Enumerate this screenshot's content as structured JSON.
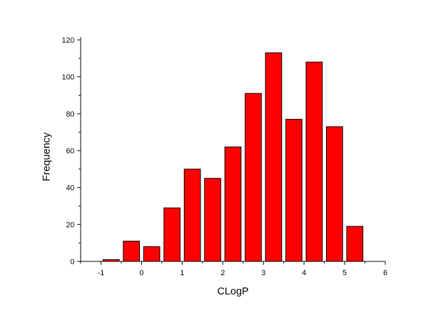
{
  "chart_data": {
    "type": "bar",
    "title": "",
    "xlabel": "CLogP",
    "ylabel": "Frequency",
    "xlim": [
      -1.5,
      6
    ],
    "ylim": [
      0,
      120
    ],
    "xticks": [
      "-1",
      "0",
      "1",
      "2",
      "3",
      "4",
      "5",
      "6"
    ],
    "yticks": [
      "0",
      "20",
      "40",
      "60",
      "80",
      "100",
      "120"
    ],
    "bar_width": 0.4,
    "bar_color": "#ff0000",
    "edge_color": "#000000",
    "x": [
      -0.75,
      -0.25,
      0.25,
      0.75,
      1.25,
      1.75,
      2.25,
      2.75,
      3.25,
      3.75,
      4.25,
      4.75,
      5.25
    ],
    "values": [
      1,
      11,
      8,
      29,
      50,
      45,
      62,
      91,
      113,
      77,
      108,
      73,
      19
    ],
    "grid": false,
    "legend": "none"
  }
}
